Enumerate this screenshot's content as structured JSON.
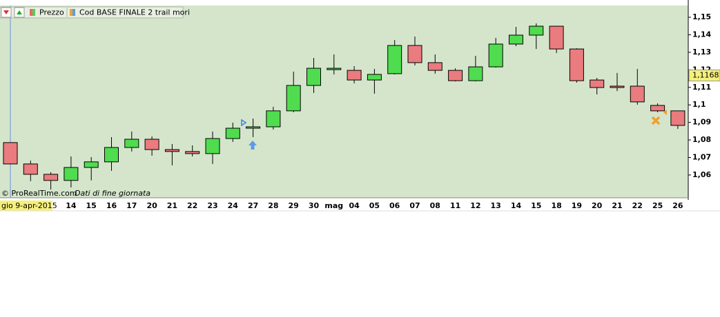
{
  "chart_data": {
    "type": "candlestick",
    "indicators": [
      "Prezzo",
      "Cod BASE FINALE 2 trail mori"
    ],
    "watermark": "© ProRealTime.com",
    "note": "Dati di fine giornata",
    "cursor_label": "gio 9-apr-2015",
    "categories": [
      null,
      null,
      null,
      "14",
      "15",
      "16",
      "17",
      "20",
      "21",
      "22",
      "23",
      "24",
      "27",
      "28",
      "29",
      "30",
      "mag",
      "04",
      "05",
      "06",
      "07",
      "08",
      "11",
      "12",
      "13",
      "14",
      "15",
      "18",
      "19",
      "20",
      "21",
      "22",
      "25",
      "26"
    ],
    "open": [
      1.0785,
      1.0663,
      1.0604,
      1.0569,
      1.0643,
      1.0675,
      1.0757,
      1.0804,
      1.0745,
      1.0734,
      1.0722,
      1.0808,
      1.0867,
      1.0875,
      1.0966,
      1.1111,
      1.1201,
      1.1197,
      1.1142,
      1.1178,
      1.1339,
      1.1241,
      1.1197,
      1.1138,
      1.1217,
      1.1347,
      1.1398,
      1.1449,
      1.1319,
      1.1142,
      1.1107,
      1.1107,
      1.0997,
      1.0966
    ],
    "high": [
      1.0785,
      1.0682,
      1.0616,
      1.0706,
      1.0702,
      1.0816,
      1.0848,
      1.082,
      1.0777,
      1.0769,
      1.0848,
      1.0899,
      1.0922,
      1.0989,
      1.119,
      1.1268,
      1.1288,
      1.1221,
      1.1205,
      1.137,
      1.139,
      1.1288,
      1.1209,
      1.128,
      1.1382,
      1.1445,
      1.1465,
      1.1449,
      1.1323,
      1.1154,
      1.1182,
      1.1205,
      1.1009,
      1.0966
    ],
    "low": [
      1.0663,
      1.0565,
      1.0517,
      1.0529,
      1.0569,
      1.0624,
      1.0734,
      1.071,
      1.0655,
      1.0706,
      1.0663,
      1.0789,
      1.0816,
      1.0859,
      1.0958,
      1.1068,
      1.1174,
      1.1123,
      1.1064,
      1.1174,
      1.1225,
      1.1178,
      1.1134,
      1.1134,
      1.1213,
      1.1335,
      1.1319,
      1.1296,
      1.1127,
      1.106,
      1.1079,
      1.1001,
      1.0958,
      1.0863
    ],
    "close": [
      1.0663,
      1.0604,
      1.0569,
      1.0643,
      1.0675,
      1.0757,
      1.0804,
      1.0745,
      1.0734,
      1.0722,
      1.0808,
      1.0867,
      1.0875,
      1.0966,
      1.1111,
      1.1209,
      1.1209,
      1.1142,
      1.1174,
      1.1339,
      1.1241,
      1.1197,
      1.1138,
      1.1217,
      1.1347,
      1.1398,
      1.1449,
      1.1319,
      1.1138,
      1.1099,
      1.1099,
      1.1017,
      1.0966,
      1.0883
    ],
    "up_color": "#4fdc4f",
    "down_color": "#ea7b7e",
    "background": "#d4e5cb",
    "last_price": {
      "value": 1.1168,
      "label": "1,1168"
    },
    "ylim": [
      1.047,
      1.1567
    ],
    "yticks": [
      {
        "value": 1.06,
        "label": "1,06"
      },
      {
        "value": 1.07,
        "label": "1,07"
      },
      {
        "value": 1.08,
        "label": "1,08"
      },
      {
        "value": 1.09,
        "label": "1,09"
      },
      {
        "value": 1.1,
        "label": "1,1"
      },
      {
        "value": 1.11,
        "label": "1,11"
      },
      {
        "value": 1.12,
        "label": "1,12"
      },
      {
        "value": 1.13,
        "label": "1,13"
      },
      {
        "value": 1.14,
        "label": "1,14"
      },
      {
        "value": 1.15,
        "label": "1,15"
      }
    ]
  }
}
